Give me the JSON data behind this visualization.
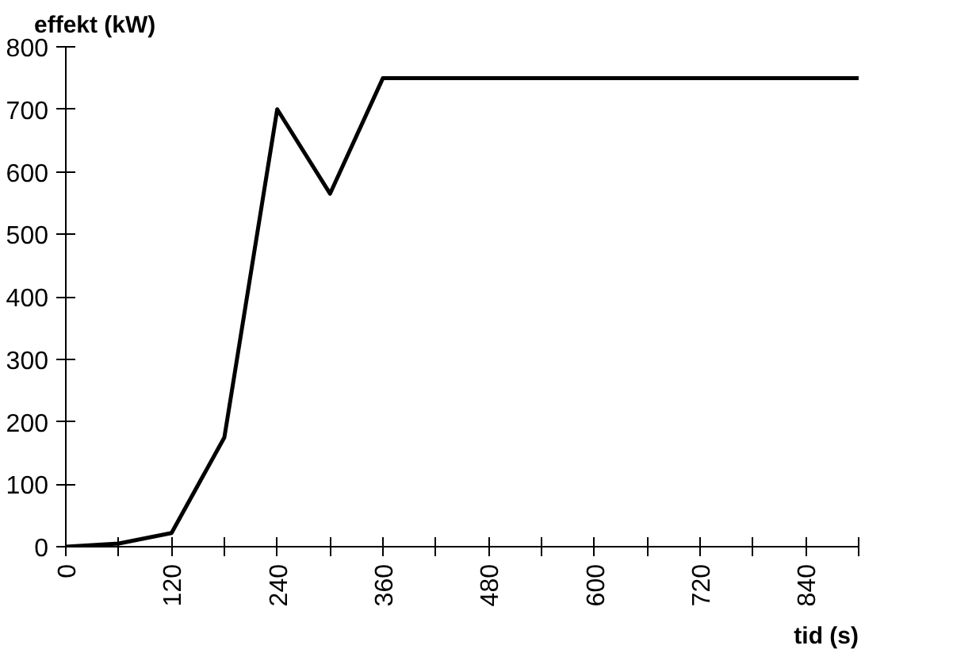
{
  "chart_data": {
    "type": "line",
    "xlabel": "tid (s)",
    "ylabel": "effekt (kW)",
    "x": [
      0,
      60,
      120,
      180,
      240,
      300,
      360,
      900
    ],
    "series": [
      {
        "color": "#000000",
        "values": [
          0,
          5,
          22,
          175,
          700,
          565,
          750,
          750
        ]
      }
    ],
    "xlim": [
      0,
      900
    ],
    "xticks": [
      0,
      {
        "value": 60,
        "label": null
      },
      120,
      {
        "value": 180,
        "label": null
      },
      240,
      {
        "value": 300,
        "label": null
      },
      360,
      {
        "value": 420,
        "label": null
      },
      480,
      {
        "value": 540,
        "label": null
      },
      600,
      {
        "value": 660,
        "label": null
      },
      720,
      {
        "value": 780,
        "label": null
      },
      840,
      {
        "value": 900,
        "label": null
      }
    ],
    "ylim": [
      0,
      800
    ],
    "yticks": [
      0,
      100,
      200,
      300,
      400,
      500,
      600,
      700,
      800
    ],
    "grid": false,
    "marker": "none",
    "line_style": "solid"
  }
}
